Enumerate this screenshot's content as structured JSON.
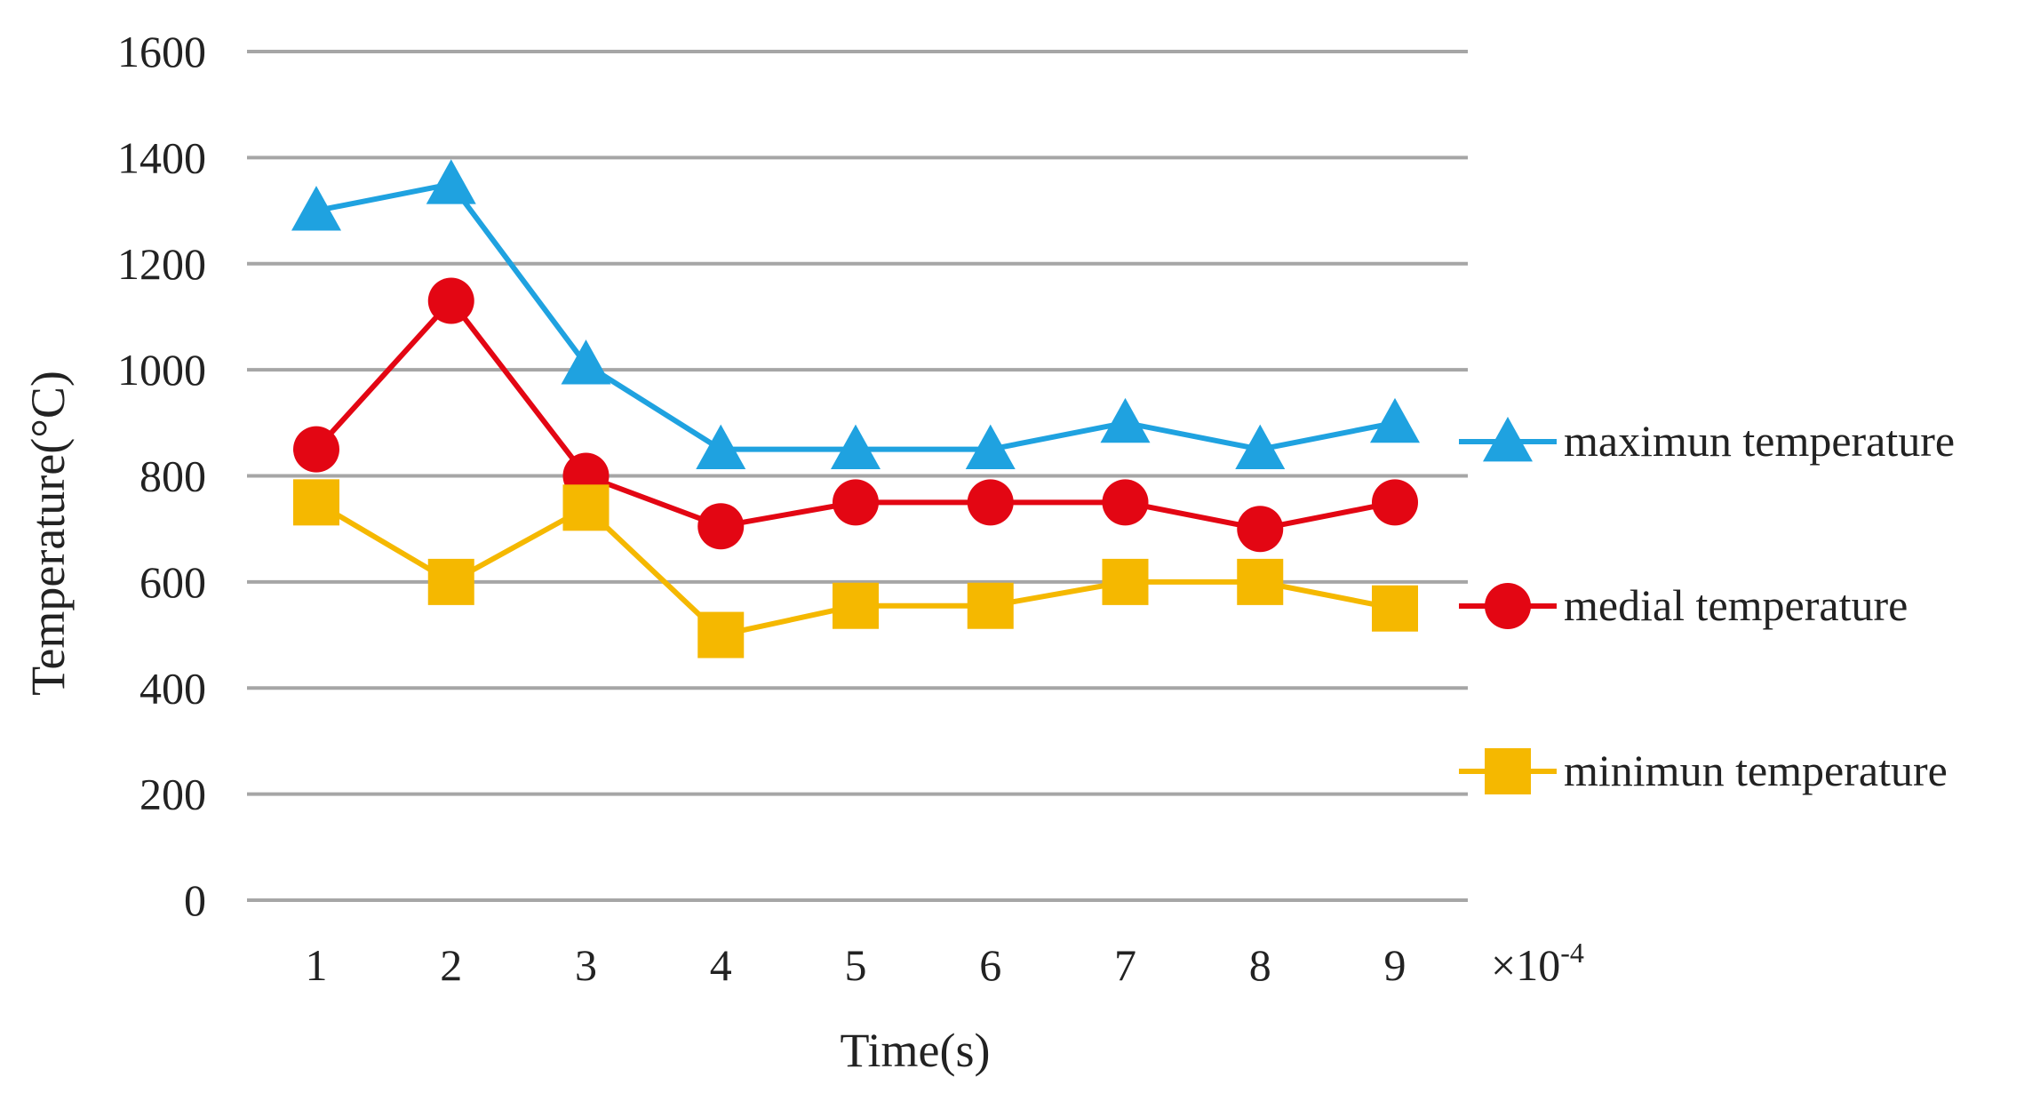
{
  "chart_data": {
    "type": "line",
    "title": "",
    "xlabel": "Time(s)",
    "ylabel": "Temperature(°C)",
    "x_scale_note": "×10",
    "x_scale_exponent": "-4",
    "categories": [
      "1",
      "2",
      "3",
      "4",
      "5",
      "6",
      "7",
      "8",
      "9"
    ],
    "ylim": [
      0,
      1600
    ],
    "y_ticks": [
      "0",
      "200",
      "400",
      "600",
      "800",
      "1000",
      "1200",
      "1400",
      "1600"
    ],
    "grid": true,
    "legend_position": "right",
    "series": [
      {
        "name": "maximun temperature",
        "marker": "triangle",
        "color": "#1fa2e0",
        "values": [
          1300,
          1350,
          1010,
          850,
          850,
          850,
          900,
          850,
          900
        ]
      },
      {
        "name": "medial temperature",
        "marker": "circle",
        "color": "#e30613",
        "values": [
          850,
          1130,
          800,
          705,
          750,
          750,
          750,
          700,
          750
        ]
      },
      {
        "name": "minimun temperature",
        "marker": "square",
        "color": "#f5b800",
        "values": [
          750,
          600,
          740,
          500,
          555,
          555,
          600,
          600,
          550
        ]
      }
    ]
  }
}
